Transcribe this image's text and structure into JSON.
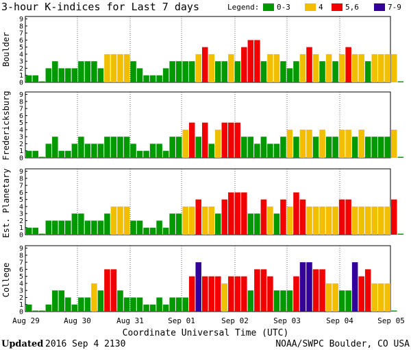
{
  "chart_data": {
    "type": "bar",
    "title": "3-hour K-indices for Last 7 days",
    "legend_label": "Legend:",
    "legend": [
      {
        "label": "0-3",
        "color": "#009900"
      },
      {
        "label": "4",
        "color": "#F2BF00"
      },
      {
        "label": "5,6",
        "color": "#F20000"
      },
      {
        "label": "7-9",
        "color": "#330099"
      }
    ],
    "xlabel": "Coordinate Universal Time (UTC)",
    "x_ticks": [
      "Aug 29",
      "Aug 30",
      "Aug 31",
      "Sep 01",
      "Sep 02",
      "Sep 03",
      "Sep 04",
      "Sep 05"
    ],
    "y_ticks": [
      "0",
      "1",
      "2",
      "3",
      "4",
      "5",
      "6",
      "7",
      "8",
      "9"
    ],
    "ylim": [
      0,
      9
    ],
    "bins_per_day": 8,
    "panels": [
      {
        "name": "Boulder",
        "values": [
          1,
          1,
          0,
          2,
          3,
          2,
          2,
          2,
          3,
          3,
          3,
          2,
          4,
          4,
          4,
          4,
          3,
          2,
          1,
          1,
          1,
          2,
          3,
          3,
          3,
          3,
          4,
          5,
          4,
          3,
          3,
          4,
          3,
          5,
          6,
          6,
          3,
          4,
          4,
          3,
          2,
          3,
          4,
          5,
          4,
          3,
          4,
          3,
          4,
          5,
          4,
          4,
          3,
          4,
          4,
          4,
          4,
          0
        ]
      },
      {
        "name": "Fredericksburg",
        "values": [
          1,
          1,
          0,
          2,
          3,
          1,
          1,
          2,
          3,
          2,
          2,
          2,
          3,
          3,
          3,
          3,
          2,
          1,
          1,
          2,
          2,
          1,
          3,
          3,
          4,
          5,
          3,
          5,
          2,
          4,
          5,
          5,
          5,
          3,
          3,
          2,
          3,
          2,
          2,
          3,
          4,
          3,
          4,
          4,
          3,
          4,
          3,
          3,
          4,
          4,
          3,
          4,
          3,
          3,
          3,
          3,
          4,
          0
        ]
      },
      {
        "name": "Est. Planetary",
        "values": [
          1,
          1,
          0,
          2,
          2,
          2,
          2,
          3,
          3,
          2,
          2,
          2,
          3,
          4,
          4,
          4,
          2,
          2,
          1,
          1,
          2,
          1,
          3,
          3,
          4,
          4,
          5,
          4,
          4,
          3,
          5,
          6,
          6,
          6,
          3,
          3,
          5,
          4,
          3,
          5,
          4,
          6,
          5,
          4,
          4,
          4,
          4,
          4,
          5,
          5,
          4,
          4,
          4,
          4,
          4,
          4,
          5,
          0
        ]
      },
      {
        "name": "College",
        "values": [
          1,
          0,
          0,
          1,
          3,
          3,
          2,
          1,
          2,
          2,
          4,
          3,
          6,
          6,
          3,
          2,
          2,
          2,
          1,
          1,
          2,
          1,
          2,
          2,
          2,
          5,
          7,
          5,
          5,
          5,
          4,
          5,
          5,
          5,
          3,
          6,
          6,
          5,
          3,
          3,
          3,
          5,
          7,
          7,
          6,
          6,
          4,
          4,
          3,
          3,
          7,
          5,
          6,
          4,
          4,
          4,
          0
        ]
      }
    ]
  },
  "footer": {
    "updated_label": "Updated",
    "updated_value": "2016 Sep  4 2130",
    "credit": "NOAA/SWPC Boulder, CO USA"
  }
}
